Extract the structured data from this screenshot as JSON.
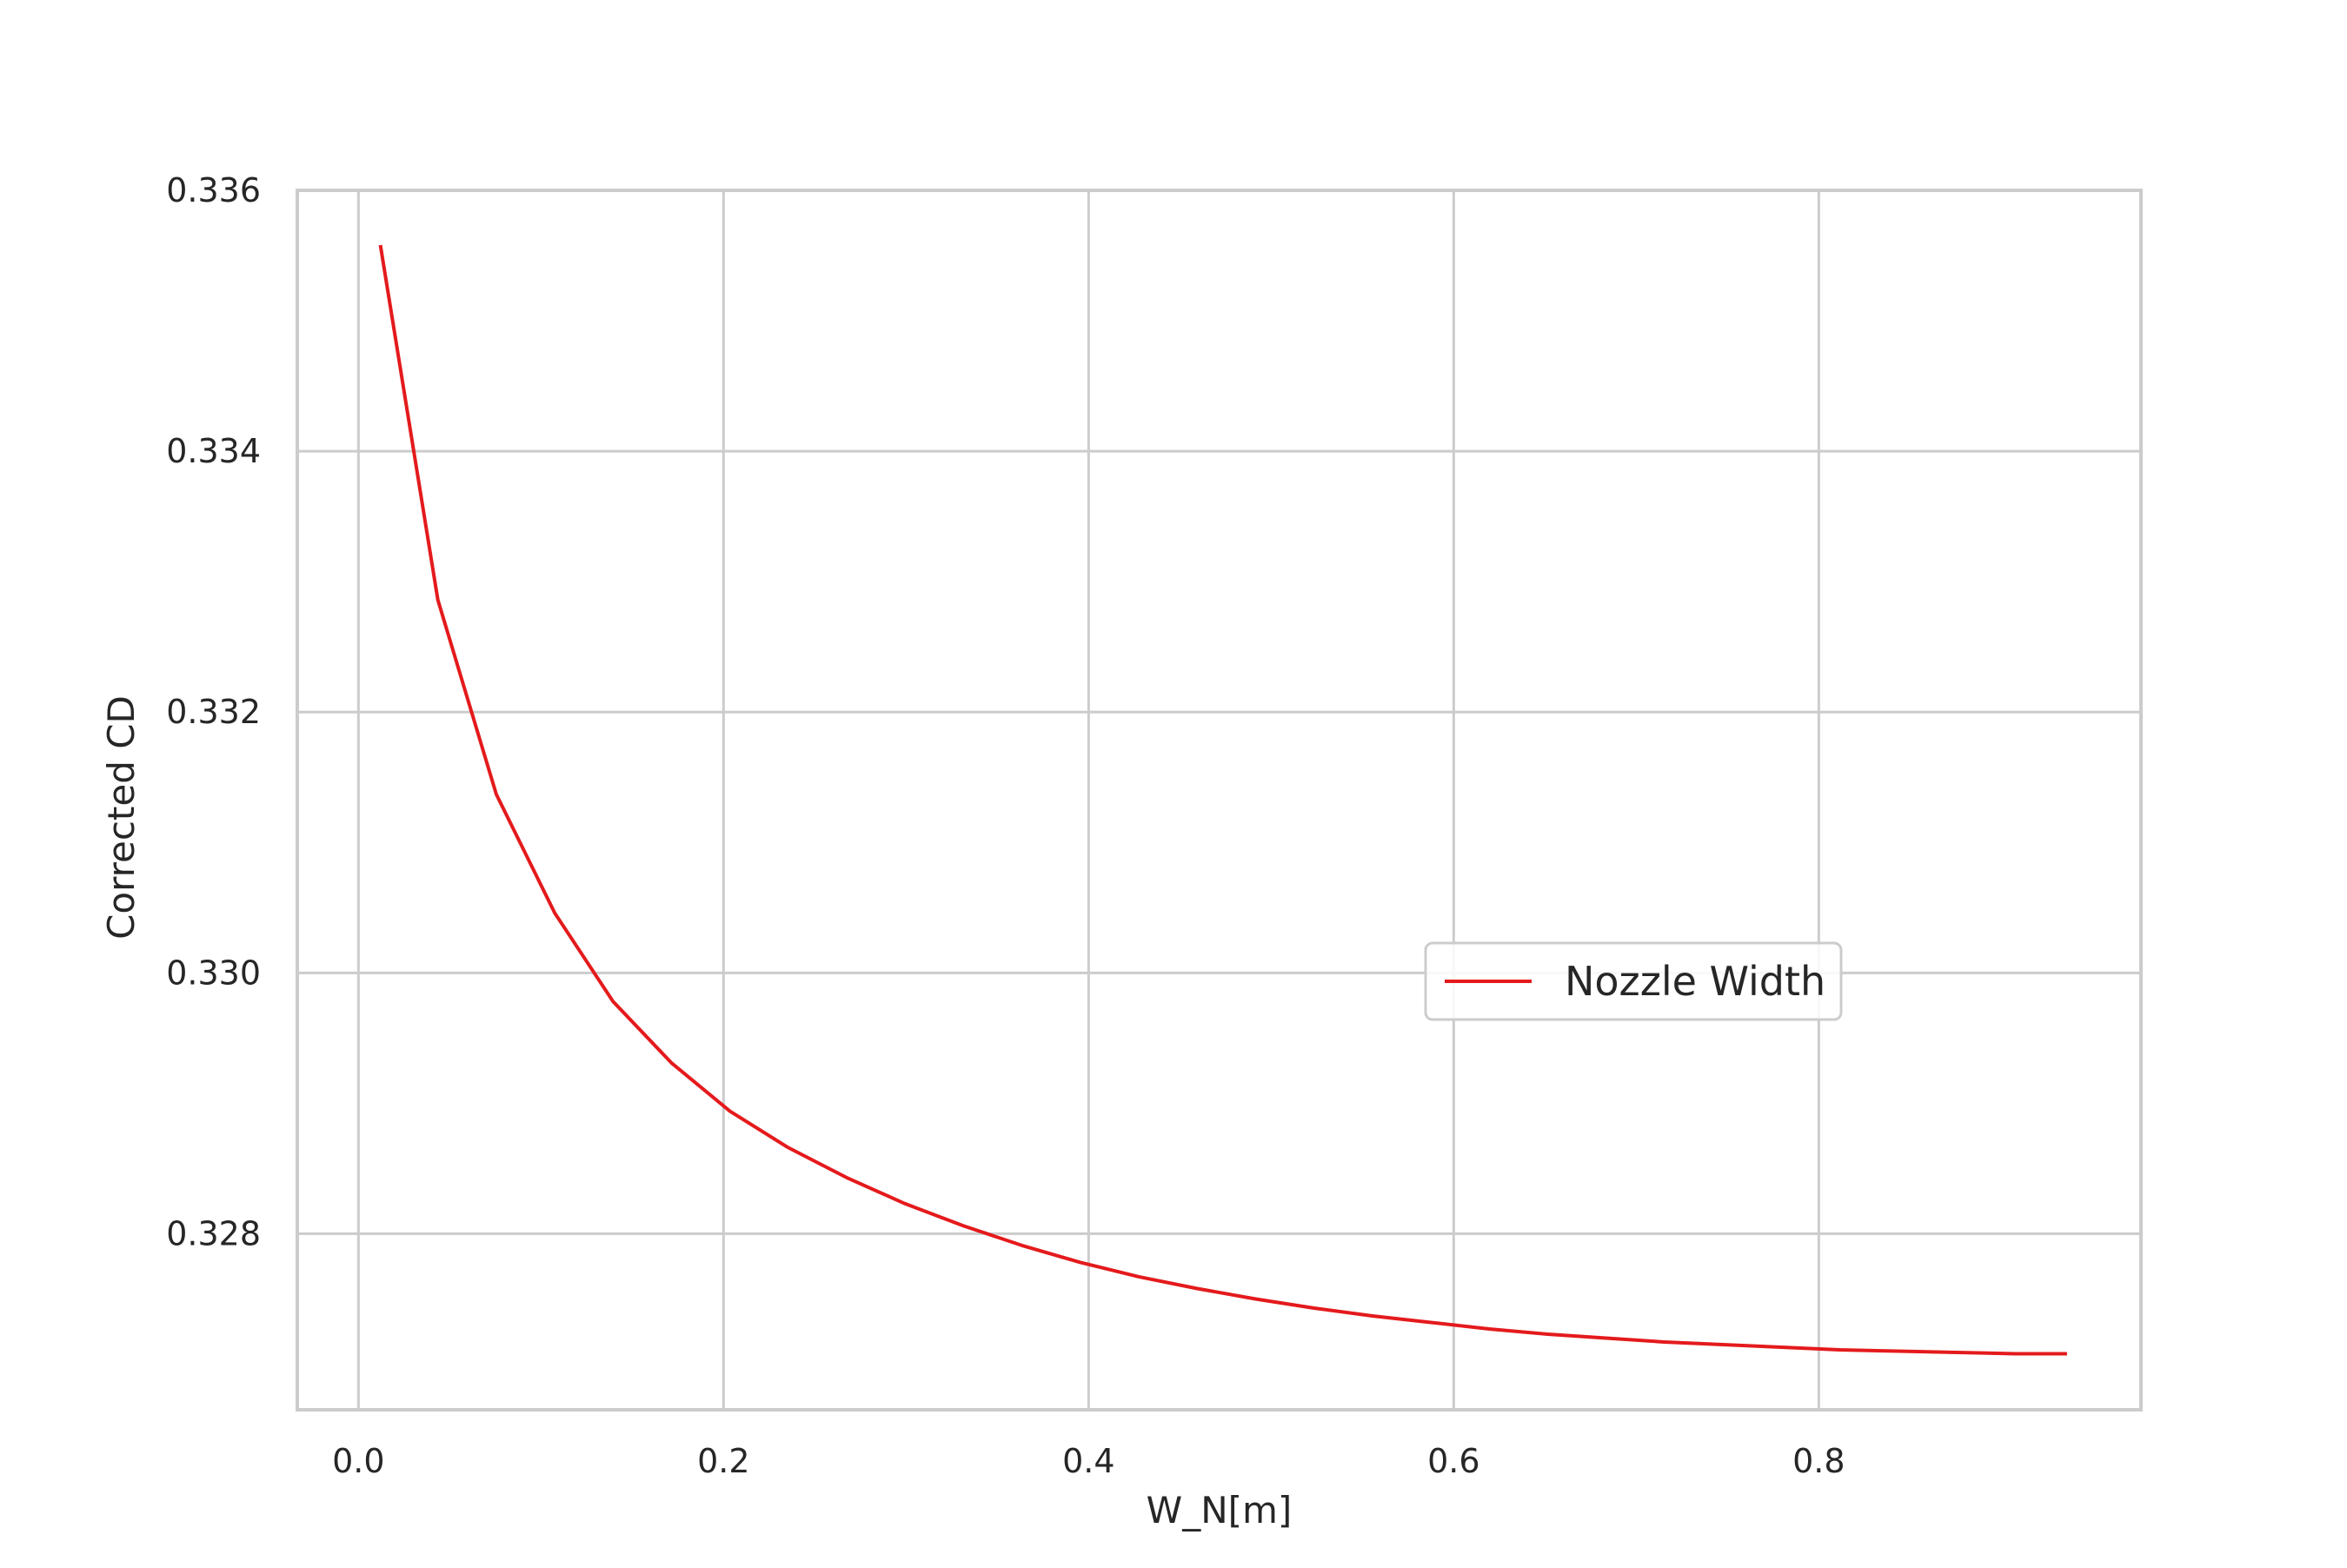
{
  "chart_data": {
    "type": "line",
    "title": "",
    "xlabel": "W_N[m]",
    "ylabel": "Corrected CD",
    "xlim": [
      -0.0335,
      0.9765
    ],
    "ylim": [
      0.32665,
      0.336
    ],
    "x_ticks": [
      0.0,
      0.2,
      0.4,
      0.6,
      0.8
    ],
    "x_tick_labels": [
      "0.0",
      "0.2",
      "0.4",
      "0.6",
      "0.8"
    ],
    "y_ticks": [
      0.328,
      0.33,
      0.332,
      0.334,
      0.336
    ],
    "y_tick_labels": [
      "0.328",
      "0.330",
      "0.332",
      "0.334",
      "0.336"
    ],
    "grid": true,
    "legend": {
      "placement": "center-right"
    },
    "series": [
      {
        "name": "Nozzle Width",
        "color": "#e41a1c",
        "x": [
          0.012,
          0.0435,
          0.0755,
          0.1075,
          0.1395,
          0.1715,
          0.2035,
          0.2355,
          0.2675,
          0.2995,
          0.3315,
          0.3635,
          0.3955,
          0.4275,
          0.4595,
          0.4915,
          0.5235,
          0.5555,
          0.5875,
          0.6195,
          0.6515,
          0.6835,
          0.7155,
          0.7475,
          0.7795,
          0.8115,
          0.8435,
          0.8755,
          0.9075,
          0.936
        ],
        "y": [
          0.33558,
          0.33286,
          0.33137,
          0.33046,
          0.32978,
          0.32931,
          0.32894,
          0.32866,
          0.32843,
          0.32823,
          0.32806,
          0.32791,
          0.32778,
          0.32767,
          0.32758,
          0.3275,
          0.32743,
          0.32737,
          0.32732,
          0.32727,
          0.32723,
          0.3272,
          0.32717,
          0.32715,
          0.32713,
          0.32711,
          0.3271,
          0.32709,
          0.32708,
          0.32708
        ]
      }
    ]
  }
}
